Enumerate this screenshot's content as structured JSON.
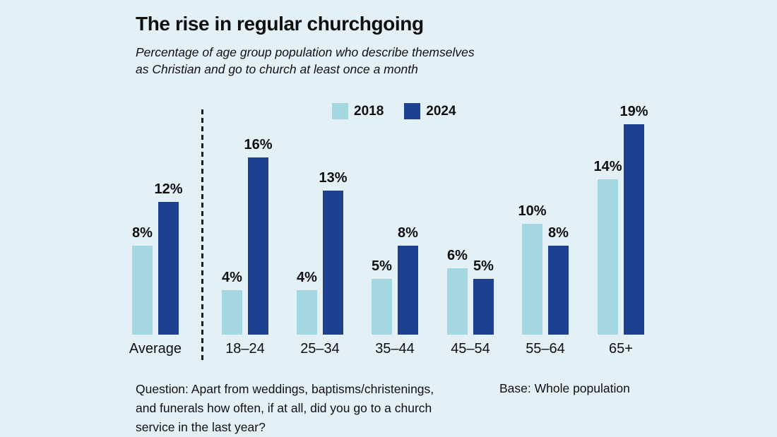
{
  "header": {
    "title": "The rise in regular churchgoing",
    "subtitle_lines": [
      "Percentage of age group population who describe themselves",
      "as Christian and go to church at least once a month"
    ]
  },
  "legend": [
    {
      "label": "2018",
      "color": "#a5d7e0"
    },
    {
      "label": "2024",
      "color": "#1d4190"
    }
  ],
  "footer": {
    "question_lines": [
      "Question: Apart from weddings, baptisms/christenings,",
      "and funerals how often, if at all, did you go to a church",
      "service in the last year?"
    ],
    "base": "Base: Whole population"
  },
  "colors": {
    "background": "#e3f0f6",
    "bar_2018": "#a5d7e0",
    "bar_2024": "#1d4190",
    "text": "#101010"
  },
  "chart_data": {
    "type": "bar",
    "title": "The rise in regular churchgoing",
    "subtitle": "Percentage of age group population who describe themselves as Christian and go to church at least once a month",
    "categories": [
      "Average",
      "18–24",
      "25–34",
      "35–44",
      "45–54",
      "55–64",
      "65+"
    ],
    "series": [
      {
        "name": "2018",
        "values": [
          8,
          4,
          4,
          5,
          6,
          10,
          14
        ]
      },
      {
        "name": "2024",
        "values": [
          12,
          16,
          13,
          8,
          5,
          8,
          19
        ]
      }
    ],
    "value_label_suffix": "%",
    "value_labels": true,
    "ylim": [
      0,
      20
    ],
    "grid": false,
    "legend_position": "top-center",
    "separator_after_category": "Average"
  }
}
